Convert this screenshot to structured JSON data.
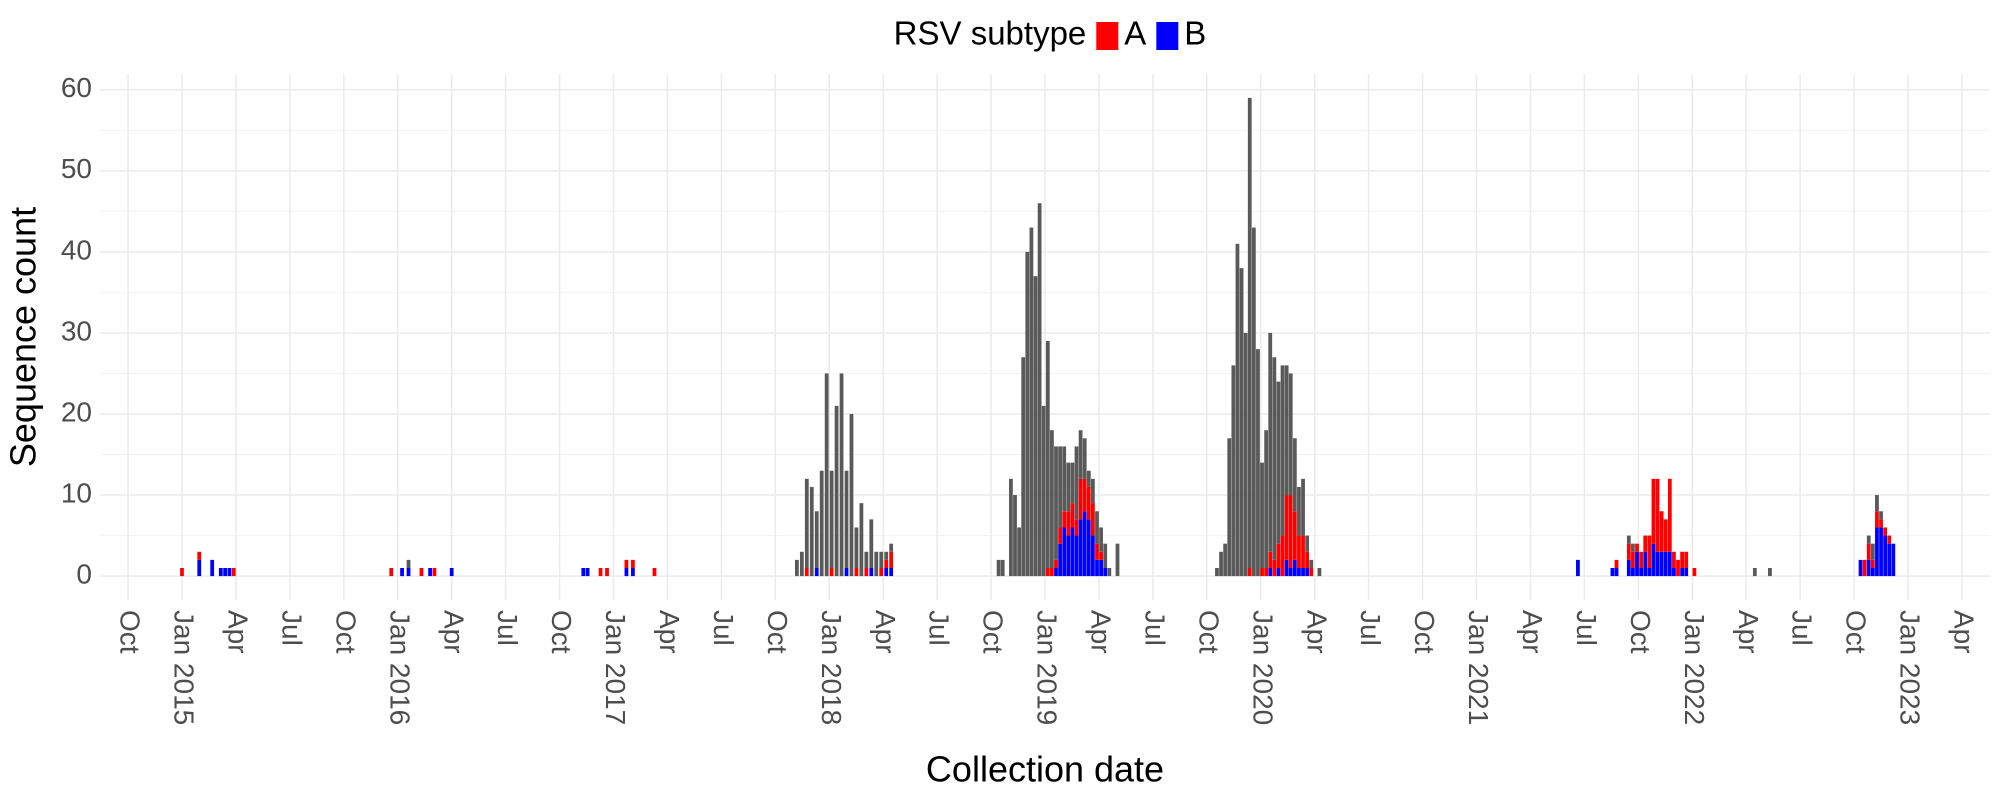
{
  "chart_data": {
    "type": "bar",
    "stacked": true,
    "legend_title": "RSV subtype",
    "legend": "top",
    "x_label": "Collection date",
    "y_label": "Sequence count",
    "grid": true,
    "x": [
      2015.0,
      2015.08,
      2015.14,
      2015.18,
      2015.2,
      2015.22,
      2015.24,
      2015.97,
      2016.02,
      2016.05,
      2016.11,
      2016.15,
      2016.17,
      2016.25,
      2016.86,
      2016.88,
      2016.94,
      2016.97,
      2017.06,
      2017.09,
      2017.19,
      2017.85,
      2017.873,
      2017.896,
      2017.919,
      2017.942,
      2017.965,
      2017.988,
      2018.011,
      2018.034,
      2018.057,
      2018.08,
      2018.103,
      2018.126,
      2018.149,
      2018.172,
      2018.195,
      2018.218,
      2018.241,
      2018.264,
      2018.287,
      2018.785,
      2018.804,
      2018.842,
      2018.861,
      2018.88,
      2018.899,
      2018.918,
      2018.937,
      2018.956,
      2018.975,
      2018.994,
      2019.013,
      2019.032,
      2019.051,
      2019.07,
      2019.089,
      2019.108,
      2019.127,
      2019.146,
      2019.165,
      2019.184,
      2019.203,
      2019.222,
      2019.241,
      2019.26,
      2019.279,
      2019.298,
      2019.336,
      2019.797,
      2019.816,
      2019.835,
      2019.854,
      2019.873,
      2019.892,
      2019.911,
      2019.93,
      2019.949,
      2019.968,
      2019.987,
      2020.006,
      2020.025,
      2020.044,
      2020.063,
      2020.082,
      2020.101,
      2020.12,
      2020.139,
      2020.158,
      2020.177,
      2020.196,
      2020.215,
      2020.234,
      2020.272,
      2021.47,
      2021.63,
      2021.649,
      2021.706,
      2021.725,
      2021.744,
      2021.763,
      2021.782,
      2021.801,
      2021.82,
      2021.839,
      2021.858,
      2021.877,
      2021.896,
      2021.915,
      2021.934,
      2021.953,
      2021.972,
      2022.01,
      2022.29,
      2022.36,
      2022.78,
      2022.799,
      2022.818,
      2022.837,
      2022.856,
      2022.875,
      2022.894,
      2022.913,
      2022.932
    ],
    "series": [
      {
        "name": "A",
        "color": "#ff0000",
        "values": [
          1,
          1,
          0,
          0,
          0,
          0,
          1,
          1,
          0,
          0,
          1,
          0,
          1,
          0,
          0,
          0,
          1,
          1,
          1,
          1,
          1,
          0,
          0,
          1,
          0,
          0,
          0,
          0,
          1,
          0,
          0,
          0,
          0,
          1,
          0,
          1,
          0,
          0,
          1,
          1,
          2,
          0,
          0,
          0,
          0,
          0,
          0,
          0,
          0,
          0,
          0,
          0,
          1,
          1,
          1,
          2,
          2,
          3,
          3,
          2,
          5,
          4,
          4,
          4,
          2,
          1,
          0,
          0,
          0,
          0,
          0,
          0,
          0,
          0,
          0,
          0,
          0,
          1,
          0,
          0,
          1,
          1,
          2,
          2,
          3,
          5,
          8,
          9,
          6,
          4,
          4,
          2,
          1,
          0,
          0,
          0,
          1,
          2,
          2,
          1,
          2,
          2,
          4,
          8,
          9,
          5,
          4,
          9,
          2,
          2,
          2,
          2,
          1,
          0,
          0,
          0,
          2,
          2,
          1,
          2,
          1,
          1,
          1,
          0
        ]
      },
      {
        "name": "B",
        "color": "#0000ff",
        "values": [
          0,
          2,
          2,
          1,
          1,
          1,
          0,
          0,
          1,
          1,
          0,
          1,
          0,
          1,
          1,
          1,
          0,
          0,
          1,
          1,
          0,
          0,
          0,
          0,
          0,
          1,
          0,
          0,
          0,
          0,
          0,
          1,
          0,
          0,
          0,
          0,
          1,
          0,
          0,
          1,
          1,
          0,
          0,
          0,
          0,
          0,
          0,
          0,
          0,
          0,
          0,
          0,
          0,
          0,
          1,
          4,
          6,
          5,
          6,
          5,
          7,
          8,
          7,
          5,
          2,
          2,
          1,
          0,
          0,
          0,
          0,
          0,
          0,
          0,
          0,
          0,
          0,
          0,
          0,
          0,
          0,
          0,
          1,
          0,
          1,
          0,
          2,
          1,
          2,
          1,
          1,
          1,
          0,
          0,
          2,
          1,
          1,
          2,
          1,
          3,
          1,
          3,
          1,
          4,
          3,
          3,
          3,
          3,
          1,
          0,
          1,
          1,
          0,
          0,
          0,
          2,
          0,
          2,
          1,
          6,
          6,
          5,
          4,
          4
        ]
      },
      {
        "color": "#595959",
        "values": [
          0,
          0,
          0,
          0,
          0,
          0,
          0,
          0,
          0,
          1,
          0,
          0,
          0,
          0,
          0,
          0,
          0,
          0,
          0,
          0,
          0,
          2,
          3,
          11,
          11,
          7,
          13,
          25,
          12,
          21,
          25,
          12,
          20,
          5,
          9,
          2,
          6,
          3,
          2,
          1,
          1,
          2,
          2,
          12,
          10,
          6,
          27,
          40,
          43,
          37,
          46,
          21,
          28,
          17,
          14,
          10,
          8,
          6,
          5,
          9,
          6,
          5,
          2,
          3,
          4,
          3,
          3,
          1,
          4,
          1,
          3,
          4,
          17,
          26,
          41,
          38,
          30,
          58,
          43,
          28,
          13,
          17,
          27,
          25,
          20,
          21,
          16,
          15,
          9,
          6,
          7,
          2,
          1,
          1,
          0,
          0,
          0,
          1,
          1,
          0,
          0,
          0,
          0,
          0,
          0,
          0,
          0,
          0,
          0,
          0,
          0,
          0,
          0,
          1,
          1,
          0,
          0,
          1,
          2,
          2,
          1,
          0,
          0,
          0
        ]
      }
    ],
    "xlim": [
      2014.62,
      2023.38
    ],
    "xticks": [
      {
        "value": 2014.75,
        "label": "Oct"
      },
      {
        "value": 2015.0,
        "label": "Jan 2015"
      },
      {
        "value": 2015.25,
        "label": "Apr"
      },
      {
        "value": 2015.5,
        "label": "Jul"
      },
      {
        "value": 2015.75,
        "label": "Oct"
      },
      {
        "value": 2016.0,
        "label": "Jan 2016"
      },
      {
        "value": 2016.25,
        "label": "Apr"
      },
      {
        "value": 2016.5,
        "label": "Jul"
      },
      {
        "value": 2016.75,
        "label": "Oct"
      },
      {
        "value": 2017.0,
        "label": "Jan 2017"
      },
      {
        "value": 2017.25,
        "label": "Apr"
      },
      {
        "value": 2017.5,
        "label": "Jul"
      },
      {
        "value": 2017.75,
        "label": "Oct"
      },
      {
        "value": 2018.0,
        "label": "Jan 2018"
      },
      {
        "value": 2018.25,
        "label": "Apr"
      },
      {
        "value": 2018.5,
        "label": "Jul"
      },
      {
        "value": 2018.75,
        "label": "Oct"
      },
      {
        "value": 2019.0,
        "label": "Jan 2019"
      },
      {
        "value": 2019.25,
        "label": "Apr"
      },
      {
        "value": 2019.5,
        "label": "Jul"
      },
      {
        "value": 2019.75,
        "label": "Oct"
      },
      {
        "value": 2020.0,
        "label": "Jan 2020"
      },
      {
        "value": 2020.25,
        "label": "Apr"
      },
      {
        "value": 2020.5,
        "label": "Jul"
      },
      {
        "value": 2020.75,
        "label": "Oct"
      },
      {
        "value": 2021.0,
        "label": "Jan 2021"
      },
      {
        "value": 2021.25,
        "label": "Apr"
      },
      {
        "value": 2021.5,
        "label": "Jul"
      },
      {
        "value": 2021.75,
        "label": "Oct"
      },
      {
        "value": 2022.0,
        "label": "Jan 2022"
      },
      {
        "value": 2022.25,
        "label": "Apr"
      },
      {
        "value": 2022.5,
        "label": "Jul"
      },
      {
        "value": 2022.75,
        "label": "Oct"
      },
      {
        "value": 2023.0,
        "label": "Jan 2023"
      },
      {
        "value": 2023.25,
        "label": "Apr"
      }
    ],
    "ylim": [
      -2.95,
      61.95
    ],
    "yticks": [
      0,
      10,
      20,
      30,
      40,
      50,
      60
    ],
    "yminorticks": [
      5,
      15,
      25,
      35,
      45,
      55
    ]
  }
}
